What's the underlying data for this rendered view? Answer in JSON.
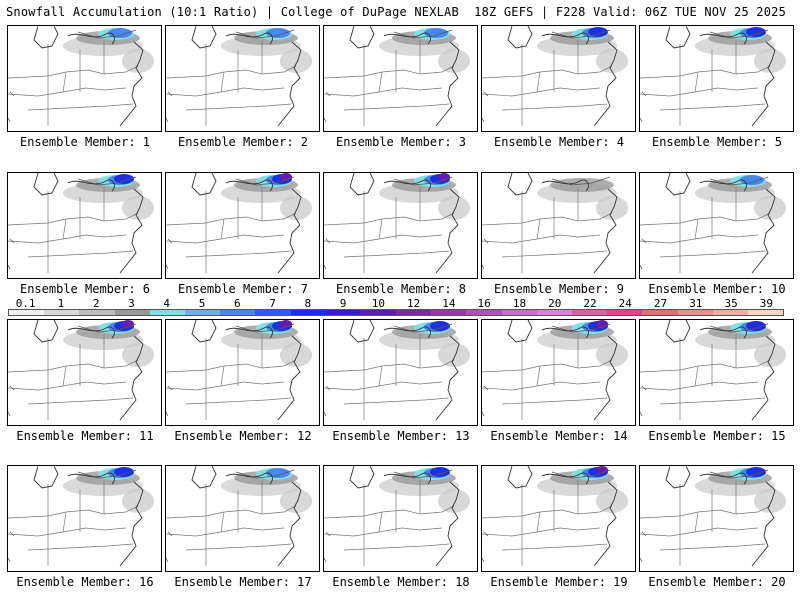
{
  "header": {
    "left_title": "Snowfall Accumulation (10:1 Ratio) | College of DuPage NEXLAB",
    "right_title": "18Z GEFS | F228 Valid: 06Z TUE NOV 25 2025"
  },
  "members": [
    {
      "label": "Ensemble Member: 1",
      "intensity": 2
    },
    {
      "label": "Ensemble Member: 2",
      "intensity": 2
    },
    {
      "label": "Ensemble Member: 3",
      "intensity": 2
    },
    {
      "label": "Ensemble Member: 4",
      "intensity": 3
    },
    {
      "label": "Ensemble Member: 5",
      "intensity": 3
    },
    {
      "label": "Ensemble Member: 6",
      "intensity": 3
    },
    {
      "label": "Ensemble Member: 7",
      "intensity": 4
    },
    {
      "label": "Ensemble Member: 8",
      "intensity": 4
    },
    {
      "label": "Ensemble Member: 9",
      "intensity": 1
    },
    {
      "label": "Ensemble Member: 10",
      "intensity": 2
    },
    {
      "label": "Ensemble Member: 11",
      "intensity": 4
    },
    {
      "label": "Ensemble Member: 12",
      "intensity": 4
    },
    {
      "label": "Ensemble Member: 13",
      "intensity": 3
    },
    {
      "label": "Ensemble Member: 14",
      "intensity": 4
    },
    {
      "label": "Ensemble Member: 15",
      "intensity": 3
    },
    {
      "label": "Ensemble Member: 16",
      "intensity": 3
    },
    {
      "label": "Ensemble Member: 17",
      "intensity": 2
    },
    {
      "label": "Ensemble Member: 18",
      "intensity": 3
    },
    {
      "label": "Ensemble Member: 19",
      "intensity": 4
    },
    {
      "label": "Ensemble Member: 20",
      "intensity": 3
    }
  ],
  "colorbar": {
    "ticks": [
      "0.1",
      "1",
      "2",
      "3",
      "4",
      "5",
      "6",
      "7",
      "8",
      "9",
      "10",
      "12",
      "14",
      "16",
      "18",
      "20",
      "22",
      "24",
      "27",
      "31",
      "35",
      "39"
    ],
    "colors": [
      "#f2f2f2",
      "#d9d9d9",
      "#bdbdbd",
      "#999999",
      "#7fe0e8",
      "#6fb0f0",
      "#4a86f0",
      "#2b5ff0",
      "#1f2fe0",
      "#3a1fc0",
      "#5a1fb0",
      "#7a2aa8",
      "#9a3aa8",
      "#b050b8",
      "#c870c8",
      "#e080d8",
      "#e060a8",
      "#d84888",
      "#e07070",
      "#e89090",
      "#f0b0a0",
      "#f8d8c0"
    ]
  }
}
